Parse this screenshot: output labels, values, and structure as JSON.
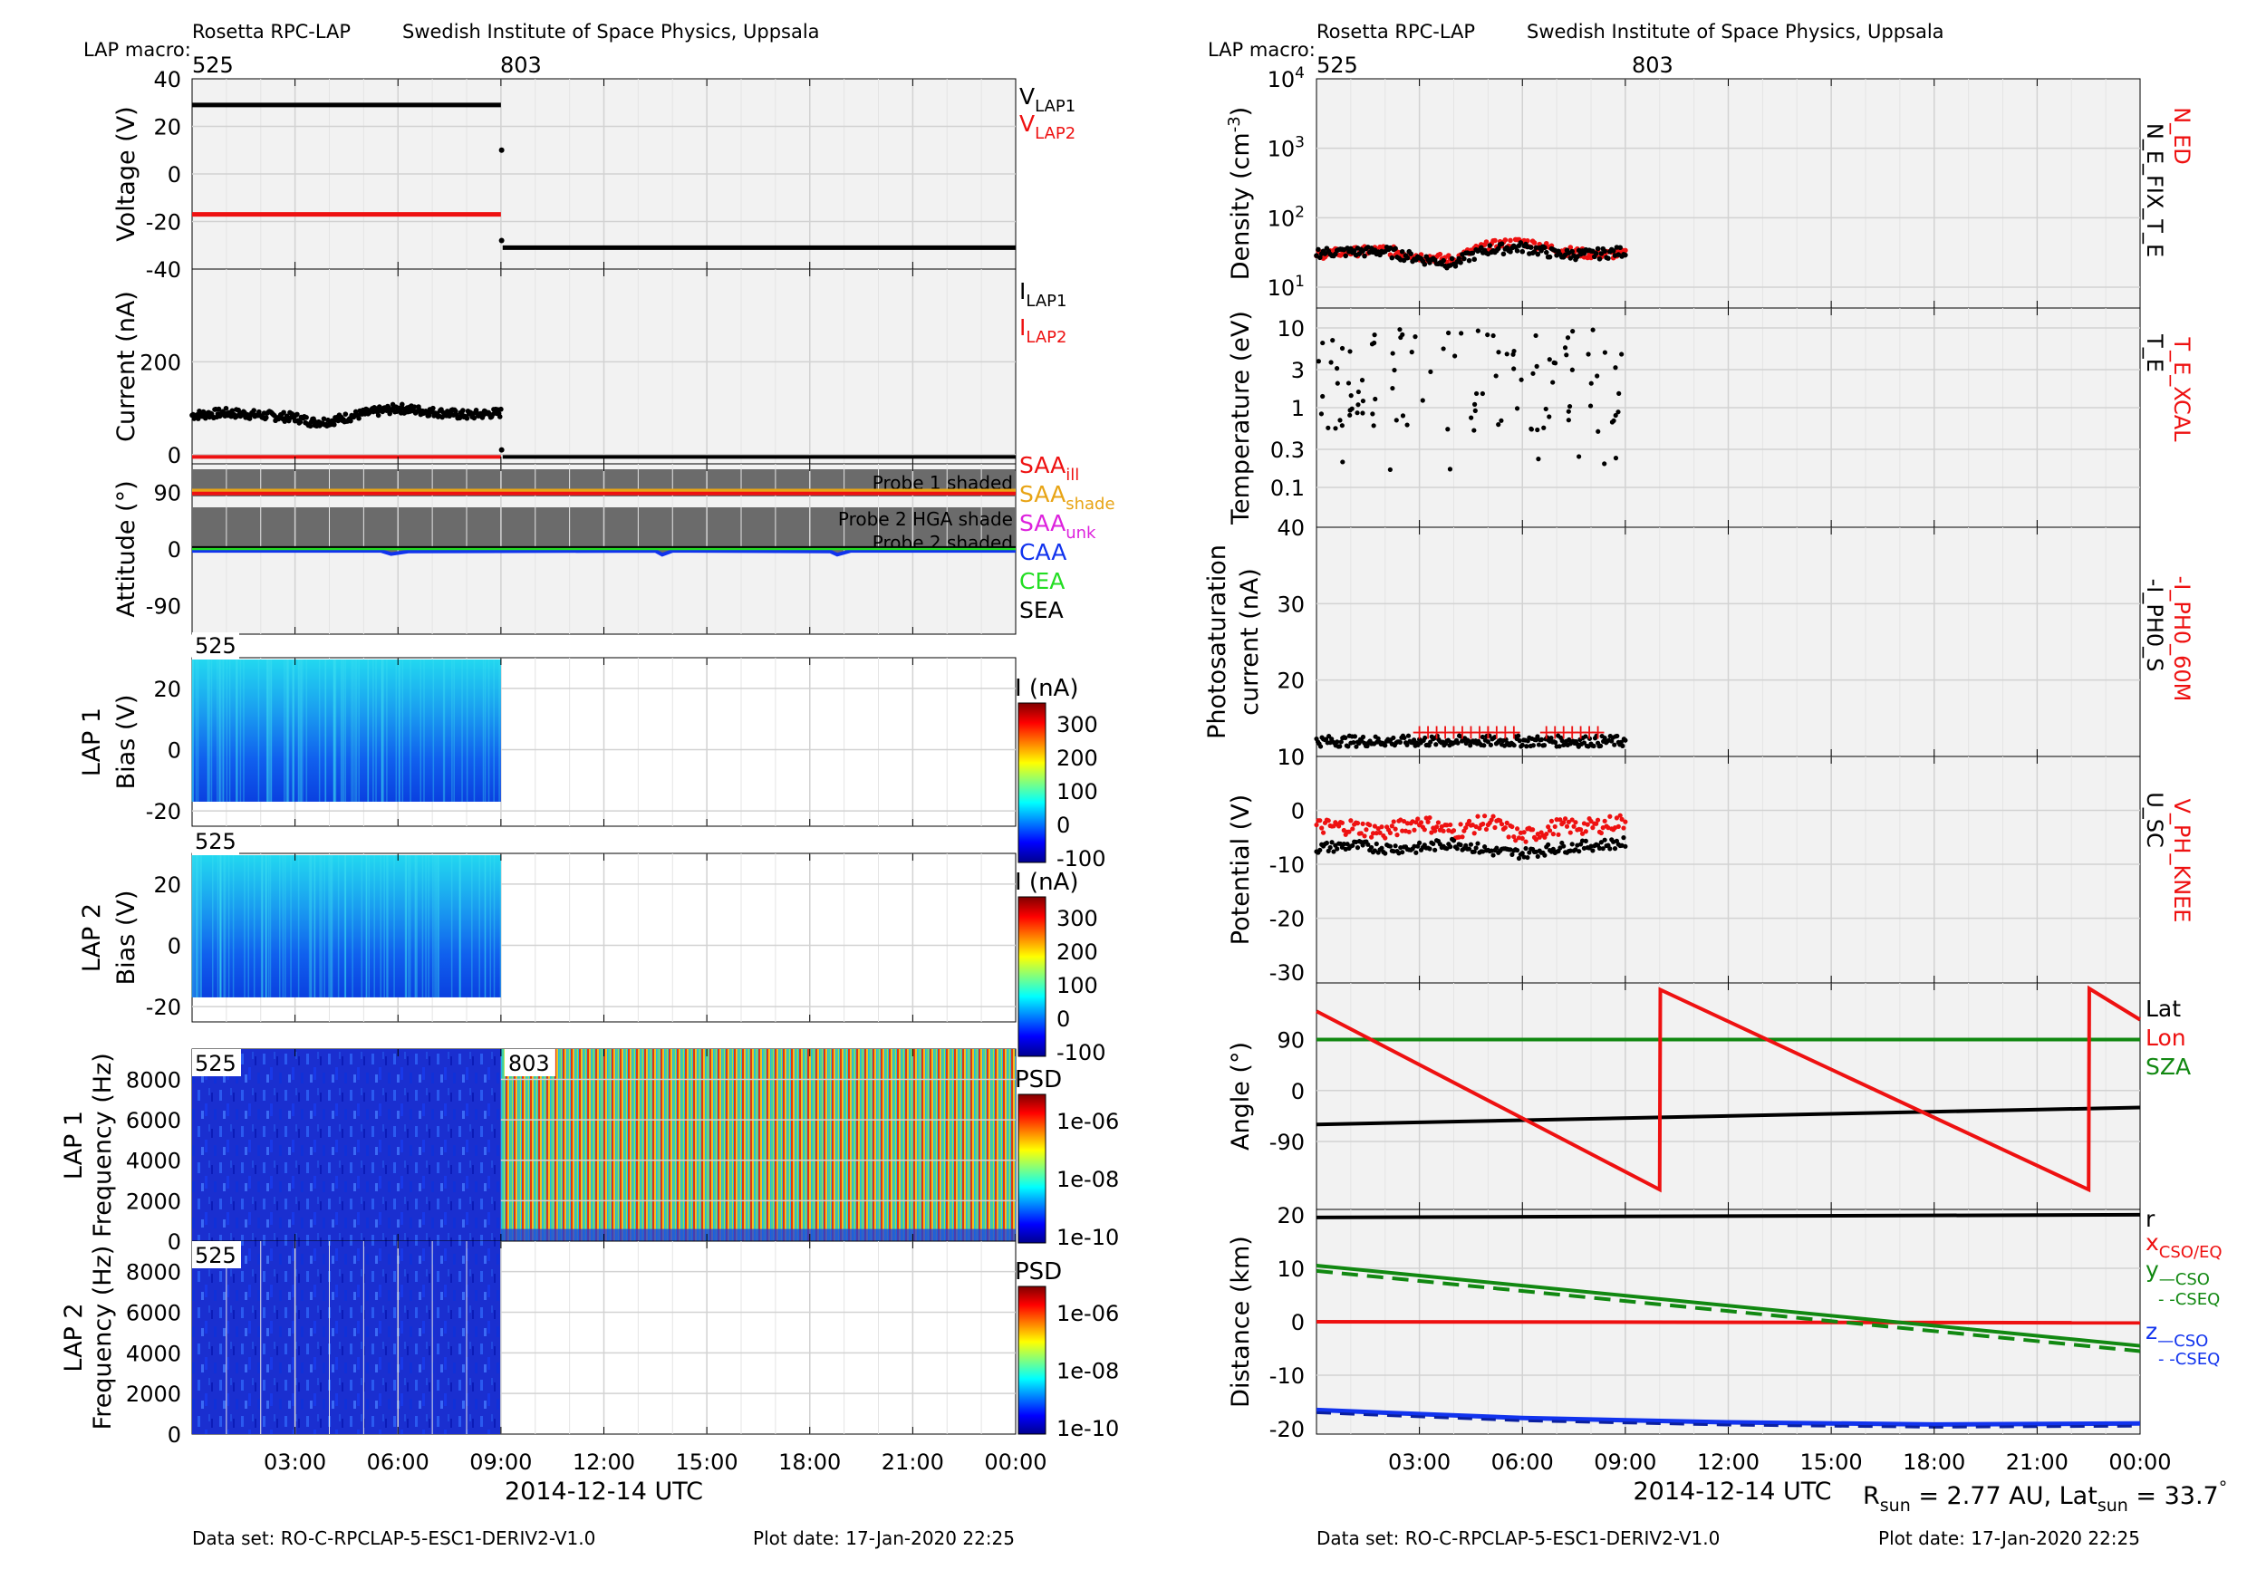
{
  "colors": {
    "black": "#000000",
    "red": "#ee1111",
    "orange": "#e8a415",
    "magenta": "#dd22dd",
    "blue": "#1133ee",
    "green": "#118811",
    "lime": "#22dd22",
    "panel": "#f2f2f2",
    "shade": "#6b6b6b"
  },
  "header": {
    "instrument": "Rosetta RPC-LAP",
    "institute": "Swedish Institute of Space Physics, Uppsala",
    "macro_label": "LAP macro:",
    "macros": [
      "525",
      "803"
    ]
  },
  "footer": {
    "dataset": "Data set: RO-C-RPCLAP-5-ESC1-DERIV2-V1.0",
    "plotdate": "Plot date: 17-Jan-2020 22:25",
    "xlabel": "2014-12-14 UTC",
    "xticks": [
      "03:00",
      "06:00",
      "09:00",
      "12:00",
      "15:00",
      "18:00",
      "21:00",
      "00:00"
    ],
    "rsun_main": "R",
    "rsun_sub": "sun",
    "rsun_val": " = 2.77 AU, Lat",
    "lat_sub": "sun",
    "lat_val": " = 33.7",
    "deg": "°"
  },
  "chart_data": [
    {
      "id": "voltage",
      "type": "scatter",
      "ylabel": "Voltage (V)",
      "ylim": [
        -40,
        40
      ],
      "yticks": [
        "40",
        "20",
        "0",
        "-20",
        "-40"
      ],
      "series": [
        {
          "name": "VLAP1",
          "segments": [
            {
              "t": [
                0,
                9.0
              ],
              "y": [
                29,
                29
              ]
            },
            {
              "t": [
                9.05,
                24
              ],
              "y": [
                -31,
                -31
              ]
            }
          ]
        },
        {
          "name": "VLAP2",
          "segments": [
            {
              "t": [
                0,
                9.0
              ],
              "y": [
                -17,
                -17
              ]
            }
          ]
        }
      ],
      "legend": [
        {
          "main": "V",
          "sub": "LAP1",
          "color": "black"
        },
        {
          "main": "V",
          "sub": "LAP2",
          "color": "red"
        }
      ]
    },
    {
      "id": "current",
      "type": "scatter",
      "ylabel": "Current (nA)",
      "ylim": [
        -20,
        400
      ],
      "yticks": [
        "200",
        "0"
      ],
      "series": [
        {
          "name": "ILAP1",
          "t": [
            0,
            1,
            2,
            3,
            3.5,
            4,
            5,
            6,
            7,
            8,
            9,
            9.05,
            12,
            16,
            20,
            24
          ],
          "y": [
            85,
            90,
            85,
            80,
            70,
            72,
            88,
            100,
            92,
            85,
            90,
            0,
            -5,
            -5,
            -5,
            -5
          ]
        },
        {
          "name": "ILAP2",
          "t": [
            0,
            9.0
          ],
          "y": [
            -5,
            -5
          ]
        }
      ],
      "legend": [
        {
          "main": "I",
          "sub": "LAP1",
          "color": "black"
        },
        {
          "main": "I",
          "sub": "LAP2",
          "color": "red"
        }
      ]
    },
    {
      "id": "attitude",
      "type": "line",
      "ylabel": "Attitude (°)",
      "ylim": [
        -135,
        135
      ],
      "yticks": [
        "90",
        "0",
        "-90"
      ],
      "annotations": [
        "Probe 1 shaded",
        "Probe 2 HGA shade",
        "Probe 2 shaded"
      ],
      "series": [
        {
          "name": "SAA_ill",
          "t": [
            0,
            24
          ],
          "y": [
            90,
            90
          ]
        },
        {
          "name": "SAA_shade",
          "t": [
            0,
            24
          ],
          "y": [
            92,
            92
          ]
        },
        {
          "name": "CAA",
          "t": [
            0,
            24
          ],
          "y": [
            -5,
            -5
          ]
        },
        {
          "name": "CEA",
          "t": [
            0,
            24
          ],
          "y": [
            0,
            0
          ]
        }
      ],
      "legend": [
        {
          "main": "SAA",
          "sub": "ill",
          "color": "red"
        },
        {
          "main": "SAA",
          "sub": "shade",
          "color": "orange"
        },
        {
          "main": "SAA",
          "sub": "unk",
          "color": "magenta"
        },
        {
          "main": "CAA",
          "sub": "",
          "color": "blue"
        },
        {
          "main": "CEA",
          "sub": "",
          "color": "lime"
        },
        {
          "main": "SEA",
          "sub": "",
          "color": "black"
        }
      ]
    },
    {
      "id": "lap1bias",
      "type": "heatmap",
      "label": "525",
      "ylabel1": "LAP 1",
      "ylabel2": "Bias (V)",
      "yticks": [
        "20",
        "0",
        "-20"
      ],
      "t_end": 9.0,
      "colorbar": {
        "title": "I (nA)",
        "ticks": [
          "300",
          "200",
          "100",
          "0",
          "-100"
        ]
      }
    },
    {
      "id": "lap2bias",
      "type": "heatmap",
      "label": "525",
      "ylabel1": "LAP 2",
      "ylabel2": "Bias (V)",
      "yticks": [
        "20",
        "0",
        "-20"
      ],
      "t_end": 9.0,
      "colorbar": {
        "title": "I (nA)",
        "ticks": [
          "300",
          "200",
          "100",
          "0",
          "-100"
        ]
      }
    },
    {
      "id": "lap1psd",
      "type": "heatmap",
      "labels": [
        "525",
        "803"
      ],
      "ylabel1": "LAP 1",
      "ylabel2": "Frequency (Hz)",
      "yticks": [
        "8000",
        "6000",
        "4000",
        "2000",
        "0"
      ],
      "colorbar": {
        "title": "PSD",
        "ticks": [
          "1e-06",
          "1e-08",
          "1e-10"
        ]
      }
    },
    {
      "id": "lap2psd",
      "type": "heatmap",
      "label": "525",
      "ylabel1": "LAP 2",
      "ylabel2": "Frequency (Hz)",
      "yticks": [
        "8000",
        "6000",
        "4000",
        "2000",
        "0"
      ],
      "t_end": 9.0,
      "colorbar": {
        "title": "PSD",
        "ticks": [
          "1e-06",
          "1e-08",
          "1e-10"
        ]
      }
    },
    {
      "id": "density",
      "type": "scatter",
      "ylabel": "Density (cm",
      "ylabel_sup": "-3",
      "yscale": "log",
      "ylim": [
        1,
        4
      ],
      "yticks": [
        {
          "b": "10",
          "e": "4"
        },
        {
          "b": "10",
          "e": "3"
        },
        {
          "b": "10",
          "e": "2"
        },
        {
          "b": "10",
          "e": "1"
        }
      ],
      "series": [
        {
          "name": "N_E_FIX_T_E",
          "t": [
            0,
            2,
            3,
            4,
            5,
            6,
            7,
            8,
            9
          ],
          "y": [
            32,
            33,
            26,
            22,
            35,
            38,
            30,
            30,
            33
          ]
        },
        {
          "name": "N_ED",
          "t": [
            0,
            2,
            3,
            4,
            5,
            6,
            7,
            8,
            9
          ],
          "y": [
            30,
            35,
            28,
            25,
            40,
            45,
            35,
            30,
            30
          ]
        }
      ],
      "legend": [
        "N_ED",
        "N_E_FIX_T_E"
      ]
    },
    {
      "id": "temperature",
      "type": "scatter",
      "ylabel": "Temperature (eV)",
      "yscale": "log",
      "ylim": [
        -1.3,
        1.2
      ],
      "yticks": [
        "10",
        "3",
        "1",
        "0.3",
        "0.1"
      ],
      "series": [
        {
          "name": "T_E",
          "t": [
            0.2,
            0.5,
            1,
            1.5,
            2,
            2.5,
            3,
            3.5,
            4,
            4.5,
            5,
            5.5,
            6,
            6.5,
            7,
            7.5,
            8,
            8.5,
            9
          ],
          "y": [
            3,
            5,
            2,
            4,
            1,
            6,
            3,
            1.5,
            5,
            0.15,
            4,
            0.15,
            8,
            3,
            2,
            5,
            3,
            2,
            4
          ]
        }
      ],
      "legend": [
        "T_E_XCAL",
        "T_E"
      ]
    },
    {
      "id": "photo",
      "type": "scatter",
      "ylabel1": "Photosaturation",
      "ylabel2": "current (nA)",
      "ylim": [
        10,
        40
      ],
      "yticks": [
        "40",
        "30",
        "20",
        "10"
      ],
      "series": [
        {
          "name": "-I_PH0_S",
          "t": [
            0,
            9
          ],
          "y": [
            12,
            12
          ]
        },
        {
          "name": "-I_PH0_60M",
          "t": [
            3,
            4,
            5,
            6,
            7,
            8
          ],
          "y": [
            13,
            13,
            13.5,
            12,
            12.5,
            12.5
          ]
        }
      ],
      "legend": [
        "-I_PH0_60M",
        "-I_PH0_S"
      ]
    },
    {
      "id": "potential",
      "type": "scatter",
      "ylabel": "Potential (V)",
      "ylim": [
        -32,
        10
      ],
      "yticks": [
        "10",
        "0",
        "-10",
        "-20",
        "-30"
      ],
      "series": [
        {
          "name": "U_SC",
          "t": [
            0,
            1,
            2,
            3,
            4,
            5,
            6,
            7,
            8,
            9
          ],
          "y": [
            -7,
            -6.5,
            -7,
            -7,
            -6,
            -7.5,
            -8,
            -7,
            -6.5,
            -6
          ]
        },
        {
          "name": "V_PH_KNEE",
          "t": [
            0,
            1,
            2,
            3,
            4,
            5,
            6,
            7,
            8,
            9
          ],
          "y": [
            -3,
            -3,
            -4,
            -2,
            -4,
            -2,
            -5,
            -3,
            -3,
            -2
          ]
        }
      ],
      "legend": [
        "V_PH_KNEE",
        "U_SC"
      ]
    },
    {
      "id": "angle",
      "type": "line",
      "ylabel": "Angle (°)",
      "ylim": [
        -210,
        190
      ],
      "yticks": [
        "90",
        "0",
        "-90"
      ],
      "series": [
        {
          "name": "Lat",
          "t": [
            0,
            24
          ],
          "y": [
            -60,
            -30
          ]
        },
        {
          "name": "Lon",
          "segments": [
            {
              "t": [
                0,
                10
              ],
              "y": [
                140,
                -175
              ]
            },
            {
              "t": [
                10,
                10.02
              ],
              "y": [
                -175,
                178
              ]
            },
            {
              "t": [
                10.02,
                22.5
              ],
              "y": [
                178,
                -175
              ]
            },
            {
              "t": [
                22.5,
                22.52
              ],
              "y": [
                -175,
                180
              ]
            },
            {
              "t": [
                22.52,
                24
              ],
              "y": [
                180,
                125
              ]
            }
          ]
        },
        {
          "name": "SZA",
          "t": [
            0,
            24
          ],
          "y": [
            90,
            90
          ]
        }
      ],
      "legend": [
        {
          "text": "Lat",
          "color": "black"
        },
        {
          "text": "Lon",
          "color": "red"
        },
        {
          "text": "SZA",
          "color": "green"
        }
      ]
    },
    {
      "id": "distance",
      "type": "line",
      "ylabel": "Distance (km)",
      "ylim": [
        -21,
        21
      ],
      "yticks": [
        "20",
        "10",
        "0",
        "-10",
        "-20"
      ],
      "series": [
        {
          "name": "r",
          "t": [
            0,
            24
          ],
          "y": [
            19.5,
            20
          ]
        },
        {
          "name": "x",
          "t": [
            0,
            24
          ],
          "y": [
            0,
            -0.2
          ]
        },
        {
          "name": "y_CSO",
          "t": [
            0,
            24
          ],
          "y": [
            10.5,
            -4.5
          ]
        },
        {
          "name": "y_CSEQ",
          "t": [
            0,
            24
          ],
          "y": [
            9.5,
            -5.5
          ]
        },
        {
          "name": "z_CSO",
          "t": [
            0,
            6,
            12,
            18,
            24
          ],
          "y": [
            -16.5,
            -18,
            -18.8,
            -19.2,
            -19
          ]
        }
      ],
      "legend": [
        {
          "main": "r",
          "sub": "",
          "color": "black"
        },
        {
          "main": "x",
          "sub": "CSO/EQ",
          "color": "red"
        },
        {
          "main": "y",
          "sub": "—CSO",
          "color": "green"
        },
        {
          "main": "",
          "sub": "- -CSEQ",
          "color": "green"
        },
        {
          "main": "z",
          "sub": "—CSO",
          "color": "blue"
        },
        {
          "main": "",
          "sub": "- -CSEQ",
          "color": "blue"
        }
      ]
    }
  ]
}
